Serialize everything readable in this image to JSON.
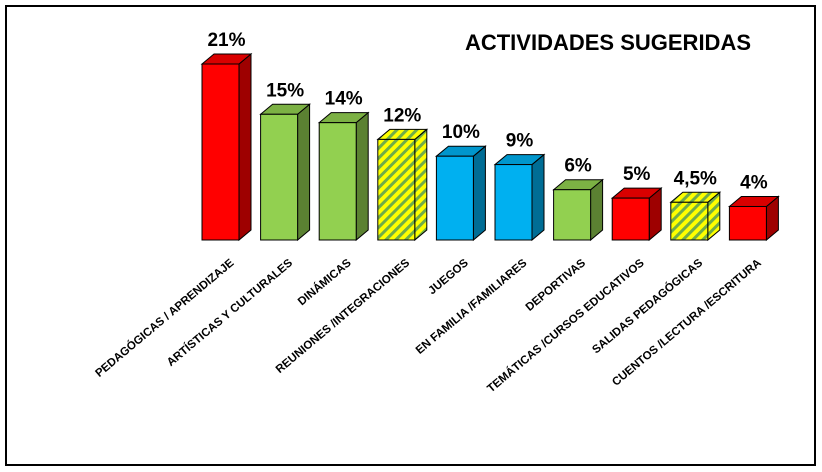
{
  "chart_data": {
    "type": "bar3d",
    "title": "ACTIVIDADES SUGERIDAS",
    "categories": [
      "PEDAGÓGICAS / APRENDIZAJE",
      "ARTÍSTICAS Y CULTURALES",
      "DINÁMICAS",
      "REUNIONES /INTEGRACIONES",
      "JUEGOS",
      "EN FAMILIA /FAMILIARES",
      "DEPORTIVAS",
      "TEMÁTICAS /CURSOS EDUCATIVOS",
      "SALIDAS PEDAGÓGICAS",
      "CUENTOS /LECTURA /ESCRITURA"
    ],
    "values": [
      21,
      15,
      14,
      12,
      10,
      9,
      6,
      5,
      4.5,
      4
    ],
    "value_labels": [
      "21%",
      "15%",
      "14%",
      "12%",
      "10%",
      "9%",
      "6%",
      "5%",
      "4,5%",
      "4%"
    ],
    "colors": [
      "#ff0000",
      "#92d050",
      "#92d050",
      "#ffff00",
      "#00b0f0",
      "#00b0f0",
      "#92d050",
      "#ff0000",
      "#ffff00",
      "#ff0000"
    ],
    "hatched": [
      false,
      false,
      false,
      true,
      false,
      false,
      false,
      false,
      true,
      false
    ],
    "hatch_color": "#70ad47"
  }
}
